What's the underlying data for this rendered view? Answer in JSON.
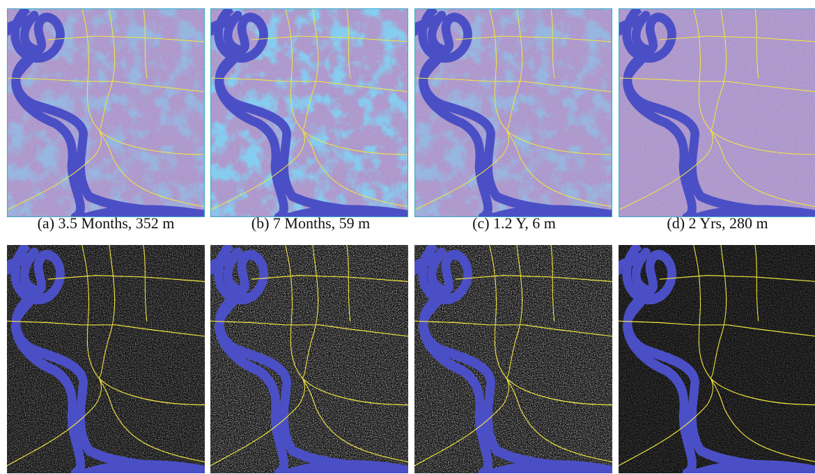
{
  "figure": {
    "captions": [
      "(a) 3.5 Months, 352 m",
      "(b) 7 Months, 59 m",
      "(c) 1.2 Y, 6 m",
      "(d) 2 Yrs, 280 m"
    ]
  }
}
